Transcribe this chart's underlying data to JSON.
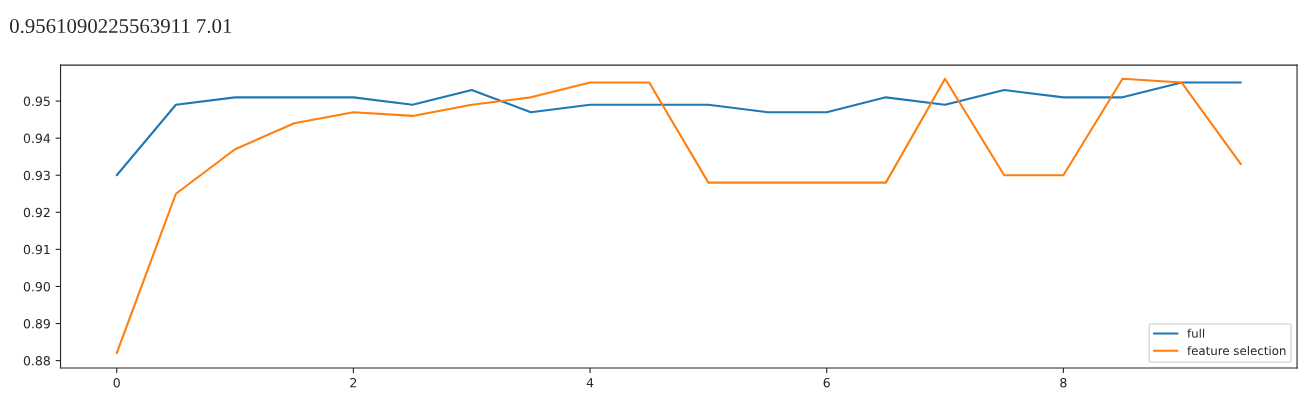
{
  "chart_data": {
    "type": "line",
    "annotations": [
      "0.9561090225563911 7.01"
    ],
    "x": [
      0,
      0.5,
      1,
      1.5,
      2,
      2.5,
      3,
      3.5,
      4,
      4.5,
      5,
      5.5,
      6,
      6.5,
      7,
      7.5,
      8,
      8.5,
      9,
      9.5
    ],
    "series": [
      {
        "name": "full",
        "color": "#1f77b4",
        "values": [
          0.93,
          0.949,
          0.951,
          0.951,
          0.951,
          0.949,
          0.953,
          0.947,
          0.949,
          0.949,
          0.949,
          0.947,
          0.947,
          0.951,
          0.949,
          0.953,
          0.951,
          0.951,
          0.955,
          0.955
        ]
      },
      {
        "name": "feature selection",
        "color": "#ff7f0e",
        "values": [
          0.882,
          0.925,
          0.937,
          0.944,
          0.947,
          0.946,
          0.949,
          0.951,
          0.955,
          0.955,
          0.928,
          0.928,
          0.928,
          0.928,
          0.956,
          0.93,
          0.93,
          0.956,
          0.955,
          0.933
        ]
      }
    ],
    "xlim": [
      -0.475,
      9.975
    ],
    "xticks": [
      0,
      2,
      4,
      6,
      8
    ],
    "ylim": [
      0.878,
      0.9597
    ],
    "yticks": [
      0.88,
      0.89,
      {
        "value": 0.9,
        "label": "0.90"
      },
      0.91,
      0.92,
      0.93,
      0.94,
      0.95
    ],
    "grid": false,
    "legend": "bottom right",
    "marker": "none",
    "line_style": "solid"
  }
}
